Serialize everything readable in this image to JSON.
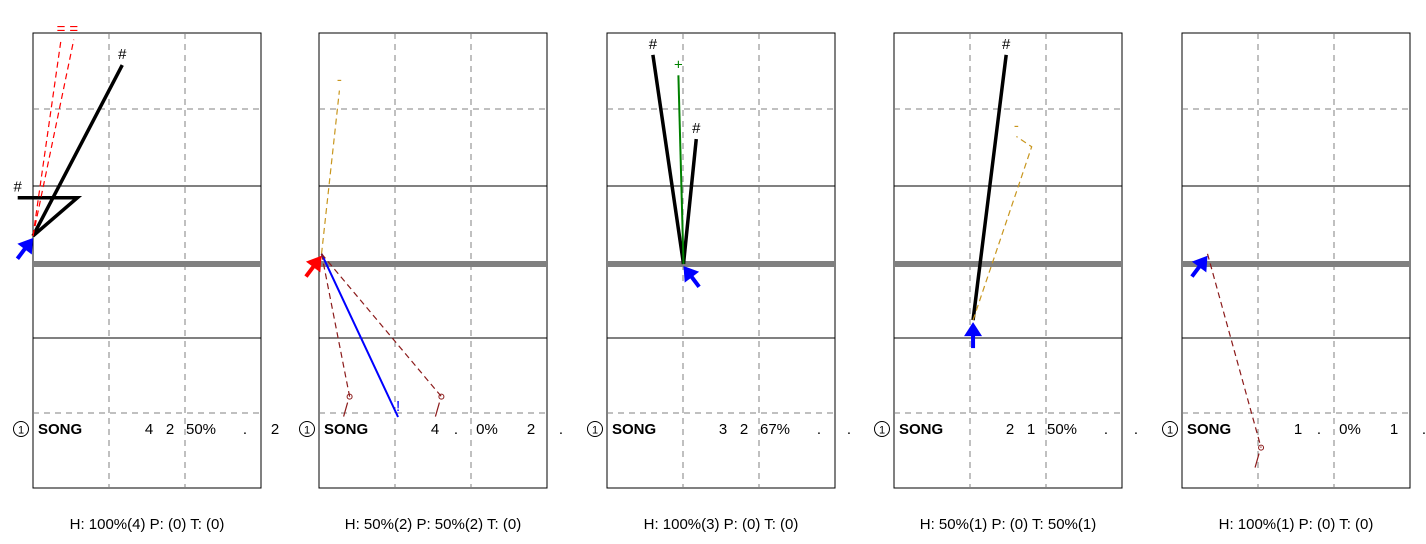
{
  "colors": {
    "court_line": "#000000",
    "grid_dash": "#808080",
    "net": "#808080",
    "player_blue": "#0000ff",
    "player_red": "#ff0000",
    "shot_black": "#000000",
    "shot_blue": "#0000ff",
    "shot_green": "#008000",
    "shot_red_dashed": "#ff0000",
    "shot_brown_dashed": "#8b1a1a",
    "shot_orange_dashed": "#c8961e"
  },
  "panels": [
    {
      "id": "panel-1",
      "player": {
        "rank_icon": "1",
        "name": "SONG"
      },
      "stats": [
        "4",
        "2",
        "50%",
        ".",
        "2"
      ],
      "footer": "H: 100%(4)  P: (0)  T: (0)",
      "marker": {
        "color": "blue",
        "direction": "up-right"
      },
      "shots": [
        {
          "style": "solid",
          "color": "black",
          "points": [
            [
              0.0,
              0.55
            ],
            [
              1.75,
              3.9
            ]
          ],
          "end_mark": "#"
        },
        {
          "style": "solid",
          "color": "black",
          "points": [
            [
              0.0,
              0.55
            ],
            [
              0.87,
              1.3
            ],
            [
              -0.3,
              1.3
            ]
          ],
          "end_mark": "#"
        },
        {
          "style": "dashed",
          "color": "red",
          "points": [
            [
              0.0,
              0.55
            ],
            [
              0.55,
              4.4
            ]
          ],
          "end_mark": "="
        },
        {
          "style": "dashed",
          "color": "red",
          "points": [
            [
              0.0,
              0.55
            ],
            [
              0.8,
              4.4
            ]
          ],
          "end_mark": "="
        }
      ]
    },
    {
      "id": "panel-2",
      "player": {
        "rank_icon": "1",
        "name": "SONG"
      },
      "stats": [
        "4",
        ".",
        "0%",
        "2",
        "."
      ],
      "footer": "H: 50%(2)  P: 50%(2)  T: (0)",
      "marker": {
        "color": "red",
        "direction": "up-right"
      },
      "shots": [
        {
          "style": "dashed",
          "color": "orange",
          "points": [
            [
              0.05,
              0.2
            ],
            [
              0.4,
              3.4
            ]
          ],
          "end_mark": "-"
        },
        {
          "style": "solid",
          "color": "blue",
          "points": [
            [
              0.05,
              0.2
            ],
            [
              1.55,
              -3.0
            ]
          ],
          "end_mark": "!"
        },
        {
          "style": "dashed",
          "color": "brown",
          "points": [
            [
              0.05,
              0.2
            ],
            [
              0.6,
              -2.6
            ]
          ],
          "end_mark": "o"
        },
        {
          "style": "dashed",
          "color": "brown",
          "points": [
            [
              0.05,
              0.2
            ],
            [
              2.4,
              -2.6
            ]
          ],
          "end_mark": "o"
        }
      ]
    },
    {
      "id": "panel-3",
      "player": {
        "rank_icon": "1",
        "name": "SONG"
      },
      "stats": [
        "3",
        "2",
        "67%",
        ".",
        "."
      ],
      "footer": "H: 100%(3)  P: (0)  T: (0)",
      "marker": {
        "color": "blue",
        "direction": "up-left"
      },
      "shots": [
        {
          "style": "solid",
          "color": "black",
          "points": [
            [
              1.5,
              0.0
            ],
            [
              0.9,
              4.1
            ]
          ],
          "end_mark": "#"
        },
        {
          "style": "solid",
          "color": "black",
          "points": [
            [
              1.5,
              0.0
            ],
            [
              1.75,
              2.45
            ]
          ],
          "end_mark": "#"
        },
        {
          "style": "solid",
          "color": "green",
          "points": [
            [
              1.5,
              0.0
            ],
            [
              1.4,
              3.7
            ]
          ],
          "end_mark": "+"
        }
      ]
    },
    {
      "id": "panel-4",
      "player": {
        "rank_icon": "1",
        "name": "SONG"
      },
      "stats": [
        "2",
        "1",
        "50%",
        ".",
        "."
      ],
      "footer": "H: 50%(1)  P: (0)  T: 50%(1)",
      "marker": {
        "color": "blue",
        "direction": "up"
      },
      "shots": [
        {
          "style": "solid",
          "color": "black",
          "points": [
            [
              1.55,
              -1.1
            ],
            [
              2.2,
              4.1
            ]
          ],
          "end_mark": "#"
        },
        {
          "style": "dashed",
          "color": "orange",
          "points": [
            [
              1.55,
              -1.1
            ],
            [
              2.7,
              2.3
            ],
            [
              2.4,
              2.5
            ]
          ],
          "end_mark": "-"
        }
      ]
    },
    {
      "id": "panel-5",
      "player": {
        "rank_icon": "1",
        "name": "SONG"
      },
      "stats": [
        "1",
        ".",
        "0%",
        "1",
        "."
      ],
      "footer": "H: 100%(1)  P: (0)  T: (0)",
      "marker": {
        "color": "blue",
        "direction": "up-right"
      },
      "shots": [
        {
          "style": "dashed",
          "color": "brown",
          "points": [
            [
              0.5,
              0.2
            ],
            [
              1.55,
              -3.6
            ]
          ],
          "end_mark": "o"
        }
      ]
    }
  ]
}
